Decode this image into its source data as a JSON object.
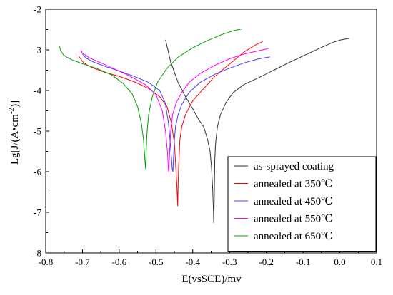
{
  "chart_data": {
    "type": "line",
    "title": "",
    "xlabel": "E(vsSCE)/mv",
    "ylabel_main": "Lg[J/(A•cm",
    "ylabel_sup": "-2",
    "ylabel_end": ")]",
    "xlim": [
      -0.8,
      0.1
    ],
    "ylim": [
      -8,
      -2
    ],
    "xticks": [
      -0.8,
      -0.7,
      -0.6,
      -0.5,
      -0.4,
      -0.3,
      -0.2,
      -0.1,
      0.0,
      0.1
    ],
    "xtick_labels": [
      "-0.8",
      "-0.7",
      "-0.6",
      "-0.5",
      "-0.4",
      "-0.3",
      "-0.2",
      "-0.1",
      "0.0",
      "0.1"
    ],
    "yticks": [
      -8,
      -7,
      -6,
      -5,
      -4,
      -3,
      -2
    ],
    "ytick_labels": [
      "-8",
      "-7",
      "-6",
      "-5",
      "-4",
      "-3",
      "-2"
    ],
    "grid": false,
    "legend_position": "bottom-right",
    "series": [
      {
        "name": "as-sprayed coating",
        "color": "#333333",
        "x": [
          -0.474,
          -0.46,
          -0.44,
          -0.42,
          -0.4,
          -0.385,
          -0.37,
          -0.36,
          -0.353,
          -0.349,
          -0.346,
          -0.344,
          -0.343,
          -0.342,
          -0.341,
          -0.34,
          -0.338,
          -0.333,
          -0.325,
          -0.31,
          -0.29,
          -0.26,
          -0.22,
          -0.18,
          -0.14,
          -0.1,
          -0.06,
          -0.02,
          0.0,
          0.025
        ],
        "y": [
          -2.75,
          -3.3,
          -3.8,
          -4.15,
          -4.45,
          -4.7,
          -4.9,
          -5.2,
          -5.5,
          -5.9,
          -6.4,
          -6.9,
          -7.25,
          -6.9,
          -6.3,
          -5.7,
          -5.3,
          -4.9,
          -4.6,
          -4.3,
          -4.05,
          -3.85,
          -3.68,
          -3.5,
          -3.32,
          -3.15,
          -2.98,
          -2.82,
          -2.76,
          -2.72
        ]
      },
      {
        "name": "annealed at 350℃",
        "color": "#ff0000",
        "x": [
          -0.71,
          -0.7,
          -0.69,
          -0.67,
          -0.64,
          -0.6,
          -0.56,
          -0.52,
          -0.49,
          -0.47,
          -0.458,
          -0.45,
          -0.446,
          -0.443,
          -0.441,
          -0.44,
          -0.438,
          -0.435,
          -0.43,
          -0.42,
          -0.4,
          -0.37,
          -0.34,
          -0.3,
          -0.26,
          -0.23,
          -0.21
        ],
        "y": [
          -3.15,
          -3.28,
          -3.36,
          -3.45,
          -3.55,
          -3.65,
          -3.78,
          -3.95,
          -4.15,
          -4.4,
          -4.8,
          -5.3,
          -5.9,
          -6.4,
          -6.84,
          -6.4,
          -5.8,
          -5.2,
          -4.9,
          -4.6,
          -4.25,
          -3.95,
          -3.65,
          -3.35,
          -3.05,
          -2.88,
          -2.8
        ]
      },
      {
        "name": "annealed at 450℃",
        "color": "#4040ff",
        "x": [
          -0.7,
          -0.69,
          -0.67,
          -0.64,
          -0.6,
          -0.56,
          -0.52,
          -0.49,
          -0.475,
          -0.466,
          -0.46,
          -0.456,
          -0.454,
          -0.452,
          -0.45,
          -0.447,
          -0.44,
          -0.43,
          -0.41,
          -0.38,
          -0.34,
          -0.3,
          -0.26,
          -0.22,
          -0.19
        ],
        "y": [
          -3.1,
          -3.2,
          -3.3,
          -3.4,
          -3.52,
          -3.65,
          -3.8,
          -4.0,
          -4.3,
          -4.8,
          -5.4,
          -5.92,
          -6.0,
          -5.6,
          -5.2,
          -4.9,
          -4.6,
          -4.35,
          -4.05,
          -3.8,
          -3.6,
          -3.45,
          -3.32,
          -3.22,
          -3.17
        ]
      },
      {
        "name": "annealed at 550℃",
        "color": "#ff00ff",
        "x": [
          -0.705,
          -0.7,
          -0.68,
          -0.65,
          -0.61,
          -0.57,
          -0.53,
          -0.5,
          -0.483,
          -0.474,
          -0.469,
          -0.466,
          -0.465,
          -0.463,
          -0.46,
          -0.455,
          -0.445,
          -0.43,
          -0.41,
          -0.38,
          -0.34,
          -0.3,
          -0.26,
          -0.22,
          -0.195
        ],
        "y": [
          -3.0,
          -3.08,
          -3.2,
          -3.32,
          -3.48,
          -3.65,
          -3.85,
          -4.1,
          -4.5,
          -5.0,
          -5.5,
          -5.95,
          -6.02,
          -5.5,
          -5.0,
          -4.6,
          -4.3,
          -4.05,
          -3.8,
          -3.58,
          -3.38,
          -3.22,
          -3.1,
          -3.02,
          -2.97
        ]
      },
      {
        "name": "annealed at 650℃",
        "color": "#00a000",
        "x": [
          -0.762,
          -0.76,
          -0.75,
          -0.73,
          -0.7,
          -0.66,
          -0.62,
          -0.59,
          -0.565,
          -0.55,
          -0.54,
          -0.534,
          -0.531,
          -0.529,
          -0.528,
          -0.527,
          -0.525,
          -0.52,
          -0.51,
          -0.495,
          -0.47,
          -0.44,
          -0.4,
          -0.36,
          -0.32,
          -0.29,
          -0.265
        ],
        "y": [
          -2.9,
          -3.02,
          -3.14,
          -3.24,
          -3.34,
          -3.46,
          -3.62,
          -3.82,
          -4.08,
          -4.4,
          -4.8,
          -5.2,
          -5.6,
          -5.85,
          -5.93,
          -5.6,
          -5.1,
          -4.6,
          -4.15,
          -3.78,
          -3.45,
          -3.18,
          -2.95,
          -2.77,
          -2.62,
          -2.53,
          -2.48
        ]
      }
    ]
  }
}
